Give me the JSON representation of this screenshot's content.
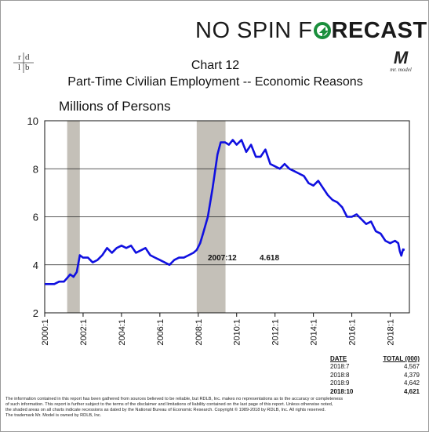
{
  "header": {
    "brand_part1": "NO SPIN F",
    "brand_part2": "RECAST",
    "brand_o_color": "#1a8f3c",
    "rdlb_letters": [
      "r",
      "d",
      "l",
      "b"
    ],
    "logo_letter": "M",
    "logo_text": "mr. model"
  },
  "chart_data": {
    "type": "line",
    "chart_number": "Chart 12",
    "title": "Part-Time Civilian Employment -- Economic Reasons",
    "ylabel": "Millions of Persons",
    "ylim": [
      2,
      10
    ],
    "yticks": [
      2,
      4,
      6,
      8,
      10
    ],
    "xlim": [
      2000.0,
      2019.0
    ],
    "xticks": [
      "2000:1",
      "2002:1",
      "2004:1",
      "2006:1",
      "2008:1",
      "2010:1",
      "2012:1",
      "2014:1",
      "2016:1",
      "2018:1"
    ],
    "grid": "horizontal",
    "line_color": "#1010e0",
    "recessions": [
      {
        "start": 2001.17,
        "end": 2001.83
      },
      {
        "start": 2007.92,
        "end": 2009.42
      }
    ],
    "annotation": {
      "date": "2007:12",
      "value": "4.618"
    },
    "series": [
      {
        "values": [
          [
            2000.0,
            3.2
          ],
          [
            2000.25,
            3.2
          ],
          [
            2000.5,
            3.2
          ],
          [
            2000.75,
            3.3
          ],
          [
            2001.0,
            3.3
          ],
          [
            2001.17,
            3.45
          ],
          [
            2001.33,
            3.6
          ],
          [
            2001.5,
            3.5
          ],
          [
            2001.67,
            3.7
          ],
          [
            2001.83,
            4.4
          ],
          [
            2002.0,
            4.3
          ],
          [
            2002.25,
            4.3
          ],
          [
            2002.5,
            4.1
          ],
          [
            2002.75,
            4.2
          ],
          [
            2003.0,
            4.4
          ],
          [
            2003.25,
            4.7
          ],
          [
            2003.5,
            4.5
          ],
          [
            2003.75,
            4.7
          ],
          [
            2004.0,
            4.8
          ],
          [
            2004.25,
            4.7
          ],
          [
            2004.5,
            4.8
          ],
          [
            2004.75,
            4.5
          ],
          [
            2005.0,
            4.6
          ],
          [
            2005.25,
            4.7
          ],
          [
            2005.5,
            4.4
          ],
          [
            2005.75,
            4.3
          ],
          [
            2006.0,
            4.2
          ],
          [
            2006.25,
            4.1
          ],
          [
            2006.5,
            4.0
          ],
          [
            2006.75,
            4.2
          ],
          [
            2007.0,
            4.3
          ],
          [
            2007.25,
            4.3
          ],
          [
            2007.5,
            4.4
          ],
          [
            2007.75,
            4.5
          ],
          [
            2007.92,
            4.618
          ],
          [
            2008.1,
            4.9
          ],
          [
            2008.25,
            5.3
          ],
          [
            2008.5,
            6.0
          ],
          [
            2008.75,
            7.2
          ],
          [
            2009.0,
            8.6
          ],
          [
            2009.17,
            9.1
          ],
          [
            2009.4,
            9.1
          ],
          [
            2009.6,
            9.0
          ],
          [
            2009.8,
            9.2
          ],
          [
            2010.0,
            9.0
          ],
          [
            2010.25,
            9.2
          ],
          [
            2010.5,
            8.7
          ],
          [
            2010.75,
            9.0
          ],
          [
            2011.0,
            8.5
          ],
          [
            2011.25,
            8.5
          ],
          [
            2011.5,
            8.8
          ],
          [
            2011.75,
            8.2
          ],
          [
            2012.0,
            8.1
          ],
          [
            2012.25,
            8.0
          ],
          [
            2012.5,
            8.2
          ],
          [
            2012.75,
            8.0
          ],
          [
            2013.0,
            7.9
          ],
          [
            2013.25,
            7.8
          ],
          [
            2013.5,
            7.7
          ],
          [
            2013.75,
            7.4
          ],
          [
            2014.0,
            7.3
          ],
          [
            2014.25,
            7.5
          ],
          [
            2014.5,
            7.2
          ],
          [
            2014.75,
            6.9
          ],
          [
            2015.0,
            6.7
          ],
          [
            2015.25,
            6.6
          ],
          [
            2015.5,
            6.4
          ],
          [
            2015.75,
            6.0
          ],
          [
            2016.0,
            6.0
          ],
          [
            2016.25,
            6.1
          ],
          [
            2016.5,
            5.9
          ],
          [
            2016.75,
            5.7
          ],
          [
            2017.0,
            5.8
          ],
          [
            2017.25,
            5.4
          ],
          [
            2017.5,
            5.3
          ],
          [
            2017.75,
            5.0
          ],
          [
            2018.0,
            4.9
          ],
          [
            2018.25,
            5.0
          ],
          [
            2018.42,
            4.9
          ],
          [
            2018.5,
            4.567
          ],
          [
            2018.58,
            4.379
          ],
          [
            2018.67,
            4.642
          ],
          [
            2018.75,
            4.621
          ]
        ]
      }
    ]
  },
  "data_table": {
    "col_date": "DATE",
    "col_total": "TOTAL (000)",
    "rows": [
      {
        "date": "2018:7",
        "total": "4,567",
        "bold": false
      },
      {
        "date": "2018:8",
        "total": "4,379",
        "bold": false
      },
      {
        "date": "2018:9",
        "total": "4,642",
        "bold": false
      },
      {
        "date": "2018:10",
        "total": "4,621",
        "bold": true
      }
    ]
  },
  "footer": {
    "line1": "The information contained in this report has been gathered from sources believed to be reliable, but RDLB, Inc. makes no representations as to the accuracy or completeness",
    "line2": "of such information. This report is further subject to the terms of the disclaimer and limitations of liability contained on the last page of this report. Unless otherwise noted,",
    "line3": "the shaded areas on all charts indicate recessions as dated by the National Bureau of Economic Research. Copyright © 1989-2018 by RDLB, Inc. All rights reserved.",
    "line4": "The trademark Mr. Model is owned by RDLB, Inc."
  }
}
